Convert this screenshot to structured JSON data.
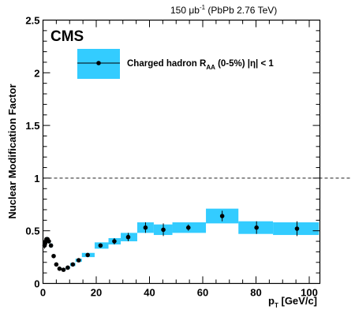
{
  "chart_data": {
    "type": "scatter",
    "experiment_label": "CMS",
    "lumi_label": {
      "prefix": "150 ",
      "unit_base": "μb",
      "unit_exp": "-1",
      "suffix": " (PbPb 2.76 TeV)"
    },
    "ylabel": "Nuclear Modification Factor",
    "xlabel": {
      "base": "p",
      "sub": "T",
      "unit": " [GeV/c]"
    },
    "xlim": [
      0,
      104
    ],
    "ylim": [
      0,
      2.5
    ],
    "x_ticks": [
      0,
      20,
      40,
      60,
      80,
      100
    ],
    "x_tick_labels": [
      "0",
      "20",
      "40",
      "60",
      "80",
      "100"
    ],
    "y_ticks": [
      0,
      0.5,
      1,
      1.5,
      2,
      2.5
    ],
    "y_tick_labels": [
      "0",
      "0.5",
      "1",
      "1.5",
      "2",
      "2.5"
    ],
    "reference_line_y": 1,
    "colors": {
      "band": "#33ccff",
      "marker": "#000000",
      "reference_line": "#000000"
    },
    "legend": {
      "placement": "top-left",
      "main": "Charged hadron  R",
      "main_sub": "AA",
      "extra": "  (0-5%)  |",
      "eta": "η",
      "tail": "| < 1"
    },
    "series": [
      {
        "name": "Charged hadron R_AA (0-5%) |η| < 1",
        "points": [
          {
            "x": 0.6,
            "y": 0.36,
            "stat": 0.03,
            "xl": 0.5,
            "xh": 0.7,
            "syst": 0.02
          },
          {
            "x": 0.8,
            "y": 0.38,
            "stat": 0.03,
            "xl": 0.7,
            "xh": 0.9,
            "syst": 0.02
          },
          {
            "x": 1.0,
            "y": 0.4,
            "stat": 0.03,
            "xl": 0.9,
            "xh": 1.1,
            "syst": 0.02
          },
          {
            "x": 1.3,
            "y": 0.42,
            "stat": 0.02,
            "xl": 1.1,
            "xh": 1.5,
            "syst": 0.02
          },
          {
            "x": 1.7,
            "y": 0.42,
            "stat": 0.02,
            "xl": 1.5,
            "xh": 1.9,
            "syst": 0.02
          },
          {
            "x": 2.2,
            "y": 0.4,
            "stat": 0.02,
            "xl": 1.9,
            "xh": 2.5,
            "syst": 0.02
          },
          {
            "x": 3.0,
            "y": 0.36,
            "stat": 0.02,
            "xl": 2.5,
            "xh": 3.5,
            "syst": 0.02
          },
          {
            "x": 4.0,
            "y": 0.26,
            "stat": 0.01,
            "xl": 3.5,
            "xh": 4.5,
            "syst": 0.015
          },
          {
            "x": 5.0,
            "y": 0.18,
            "stat": 0.01,
            "xl": 4.5,
            "xh": 5.5,
            "syst": 0.01
          },
          {
            "x": 6.2,
            "y": 0.14,
            "stat": 0.01,
            "xl": 5.5,
            "xh": 7.0,
            "syst": 0.01
          },
          {
            "x": 7.7,
            "y": 0.13,
            "stat": 0.01,
            "xl": 7.0,
            "xh": 8.5,
            "syst": 0.01
          },
          {
            "x": 9.3,
            "y": 0.15,
            "stat": 0.01,
            "xl": 8.5,
            "xh": 10.2,
            "syst": 0.01
          },
          {
            "x": 11.2,
            "y": 0.18,
            "stat": 0.01,
            "xl": 10.2,
            "xh": 12.2,
            "syst": 0.015
          },
          {
            "x": 13.4,
            "y": 0.22,
            "stat": 0.01,
            "xl": 12.2,
            "xh": 14.6,
            "syst": 0.015
          },
          {
            "x": 16.8,
            "y": 0.27,
            "stat": 0.01,
            "xl": 14.6,
            "xh": 19.4,
            "syst": 0.02
          },
          {
            "x": 21.6,
            "y": 0.36,
            "stat": 0.02,
            "xl": 19.4,
            "xh": 24.6,
            "syst": 0.03
          },
          {
            "x": 26.8,
            "y": 0.4,
            "stat": 0.03,
            "xl": 24.6,
            "xh": 29.2,
            "syst": 0.03
          },
          {
            "x": 32.0,
            "y": 0.44,
            "stat": 0.04,
            "xl": 29.2,
            "xh": 35.4,
            "syst": 0.04
          },
          {
            "x": 38.5,
            "y": 0.53,
            "stat": 0.05,
            "xl": 35.4,
            "xh": 41.6,
            "syst": 0.05
          },
          {
            "x": 45.2,
            "y": 0.51,
            "stat": 0.06,
            "xl": 41.6,
            "xh": 48.6,
            "syst": 0.05
          },
          {
            "x": 54.6,
            "y": 0.53,
            "stat": 0.03,
            "xl": 48.6,
            "xh": 61.2,
            "syst": 0.05
          },
          {
            "x": 67.3,
            "y": 0.64,
            "stat": 0.05,
            "xl": 61.2,
            "xh": 73.4,
            "syst": 0.07
          },
          {
            "x": 80.2,
            "y": 0.53,
            "stat": 0.06,
            "xl": 73.4,
            "xh": 86.4,
            "syst": 0.06
          },
          {
            "x": 95.4,
            "y": 0.52,
            "stat": 0.07,
            "xl": 86.4,
            "xh": 103.6,
            "syst": 0.06
          }
        ]
      }
    ]
  }
}
